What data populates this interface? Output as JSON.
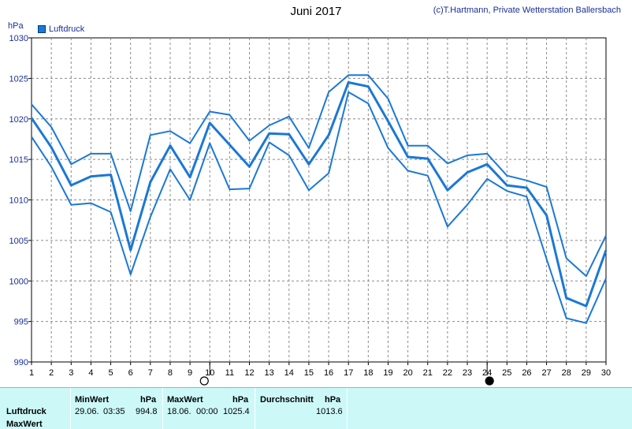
{
  "header": {
    "title": "Juni 2017",
    "credit": "(c)T.Hartmann, Private Wetterstation Ballersbach",
    "unit": "hPa"
  },
  "legend": {
    "label": "Luftdruck",
    "color": "#1a78d6"
  },
  "chart_data": {
    "type": "line",
    "title": "Juni 2017",
    "xlabel": "",
    "ylabel": "hPa",
    "x": [
      1,
      2,
      3,
      4,
      5,
      6,
      7,
      8,
      9,
      10,
      11,
      12,
      13,
      14,
      15,
      16,
      17,
      18,
      19,
      20,
      21,
      22,
      23,
      24,
      25,
      26,
      27,
      28,
      29,
      30
    ],
    "xlim": [
      1,
      30
    ],
    "ylim": [
      990,
      1030
    ],
    "yticks": [
      990,
      995,
      1000,
      1005,
      1010,
      1015,
      1020,
      1025,
      1030
    ],
    "grid": true,
    "line_color": "#1a78d6",
    "markers": [
      {
        "x": 10,
        "symbol": "open-circle"
      },
      {
        "x": 24,
        "symbol": "filled-circle"
      }
    ],
    "series": [
      {
        "name": "Luftdruck",
        "role": "max",
        "values": [
          1021.8,
          1019.0,
          1014.4,
          1015.7,
          1015.7,
          1008.6,
          1018.0,
          1018.5,
          1017.0,
          1020.9,
          1020.5,
          1017.3,
          1019.2,
          1020.3,
          1016.4,
          1023.3,
          1025.4,
          1025.4,
          1022.5,
          1016.7,
          1016.7,
          1014.5,
          1015.5,
          1015.7,
          1013.0,
          1012.4,
          1011.6,
          1002.8,
          1000.6,
          1005.6
        ]
      },
      {
        "name": "Luftdruck",
        "role": "mean",
        "values": [
          1020.1,
          1016.5,
          1011.8,
          1012.9,
          1013.1,
          1003.8,
          1012.2,
          1016.7,
          1012.8,
          1019.5,
          1016.8,
          1014.1,
          1018.2,
          1018.1,
          1014.4,
          1018.0,
          1024.5,
          1024.0,
          1019.7,
          1015.3,
          1015.1,
          1011.2,
          1013.4,
          1014.4,
          1011.8,
          1011.5,
          1008.1,
          997.9,
          996.9,
          1003.8
        ]
      },
      {
        "name": "Luftdruck",
        "role": "min",
        "values": [
          1017.8,
          1014.1,
          1009.4,
          1009.6,
          1008.5,
          1000.8,
          1007.9,
          1013.8,
          1010.0,
          1017.0,
          1011.3,
          1011.4,
          1017.1,
          1015.5,
          1011.2,
          1013.3,
          1023.3,
          1021.9,
          1016.4,
          1013.6,
          1013.0,
          1006.7,
          1009.4,
          1012.6,
          1011.1,
          1010.4,
          1002.7,
          995.4,
          994.8,
          1000.3
        ]
      }
    ]
  },
  "stats": {
    "row_label_1": "Luftdruck",
    "row_label_2": "MaxWert",
    "min_header": "MinWert",
    "min_unit": "hPa",
    "min_date": "29.06.",
    "min_time": "03:35",
    "min_value": "994.8",
    "max_header": "MaxWert",
    "max_unit": "hPa",
    "max_date": "18.06.",
    "max_time": "00:00",
    "max_value": "1025.4",
    "avg_header": "Durchschnitt",
    "avg_unit": "hPa",
    "avg_value": "1013.6"
  }
}
